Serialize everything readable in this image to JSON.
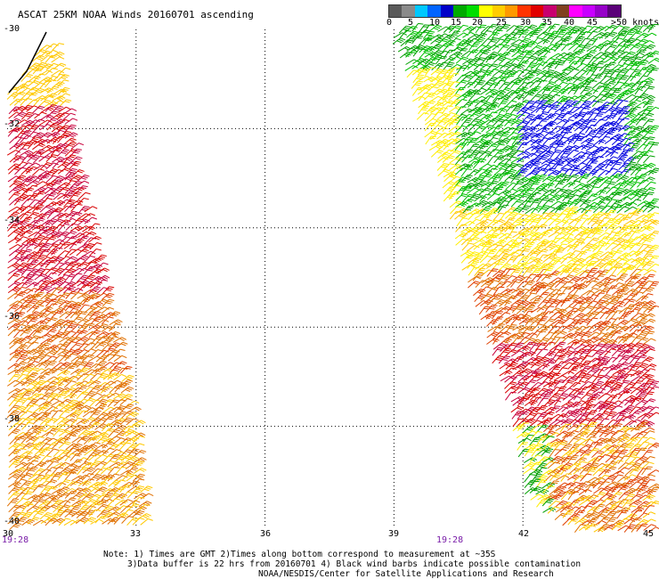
{
  "map": {
    "title": "ASCAT 25KM NOAA Winds 20160701 ascending",
    "lat_labels": [
      "-30",
      "-32",
      "-34",
      "-36",
      "-38",
      "-40"
    ],
    "lon_labels": [
      "30",
      "33",
      "36",
      "39",
      "42",
      "45"
    ],
    "pass_times": [
      "19:28",
      "19:28"
    ],
    "time_color": "#7a1ea8",
    "grid": true,
    "grid_style": "dotted"
  },
  "legend": {
    "labels": [
      "0",
      "5",
      "10",
      "15",
      "20",
      "25",
      "30",
      "35",
      "40",
      "45",
      ">50 knots"
    ],
    "colors": [
      "#5a5a5a",
      "#8a8a8a",
      "#00c8ff",
      "#0064ff",
      "#0000c8",
      "#00aa00",
      "#00dd00",
      "#ffff00",
      "#ffcc00",
      "#ff9900",
      "#ff3300",
      "#e00000",
      "#c8006e",
      "#804020",
      "#ff00ff",
      "#c800ff",
      "#9600c8",
      "#5a0078"
    ]
  },
  "notes": {
    "line1": "Note: 1) Times are GMT 2)Times along bottom correspond to measurement at ~35S",
    "line2": "3)Data buffer is 22 hrs from 20160701 4) Black wind barbs indicate possible contamination",
    "line3": "NOAA/NESDIS/Center for Satellite Applications and Research"
  },
  "wind_colors": {
    "blue": "#0000e0",
    "green": "#00a000",
    "green_light": "#00c000",
    "yellow": "#ffee00",
    "gold": "#ffc800",
    "orange": "#e07000",
    "red_orange": "#e04000",
    "red": "#d80000",
    "crimson": "#c8003c",
    "contaminated": "#000000"
  }
}
